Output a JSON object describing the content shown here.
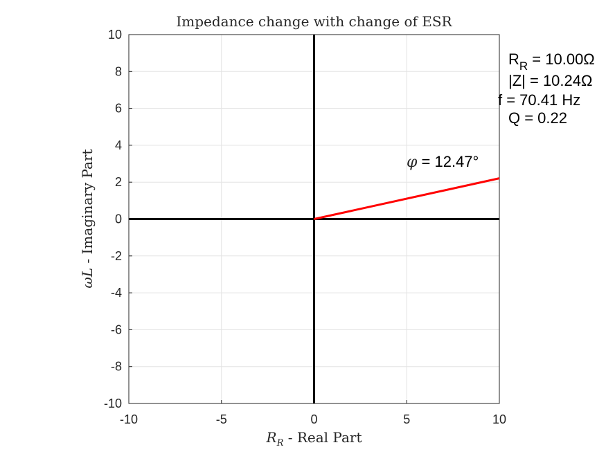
{
  "chart_data": {
    "type": "line",
    "title": "Impedance change with change of ESR",
    "xlabel_var": "R",
    "xlabel_sub": "R",
    "xlabel_text": " - Real Part",
    "ylabel_var": "ωL",
    "ylabel_text": " - Imaginary Part",
    "xlim": [
      -10,
      10
    ],
    "ylim": [
      -10,
      10
    ],
    "xticks": [
      -10,
      -5,
      0,
      5,
      10
    ],
    "xtick_labels": [
      "-10",
      "-5",
      "0",
      "5",
      "10"
    ],
    "yticks": [
      -10,
      -8,
      -6,
      -4,
      -2,
      0,
      2,
      4,
      6,
      8,
      10
    ],
    "ytick_labels": [
      "-10",
      "-8",
      "-6",
      "-4",
      "-2",
      "0",
      "2",
      "4",
      "6",
      "8",
      "10"
    ],
    "grid": true,
    "series": [
      {
        "x": [
          0,
          10
        ],
        "y": [
          0,
          2.21
        ],
        "color": "#ff0000"
      }
    ],
    "axis_lines": [
      {
        "x": [
          -10,
          10
        ],
        "y": [
          0,
          0
        ]
      },
      {
        "x": [
          0,
          0
        ],
        "y": [
          -10,
          10
        ]
      }
    ],
    "annotations": {
      "phase_symbol": "φ",
      "phase_value": " = 12.47°",
      "rr_var": "R",
      "rr_sub": "R",
      "rr_value": " = 10.00Ω",
      "z_line": "|Z| = 10.24Ω",
      "f_line": "f = 70.41 Hz",
      "q_line": "Q = 0.22"
    }
  }
}
